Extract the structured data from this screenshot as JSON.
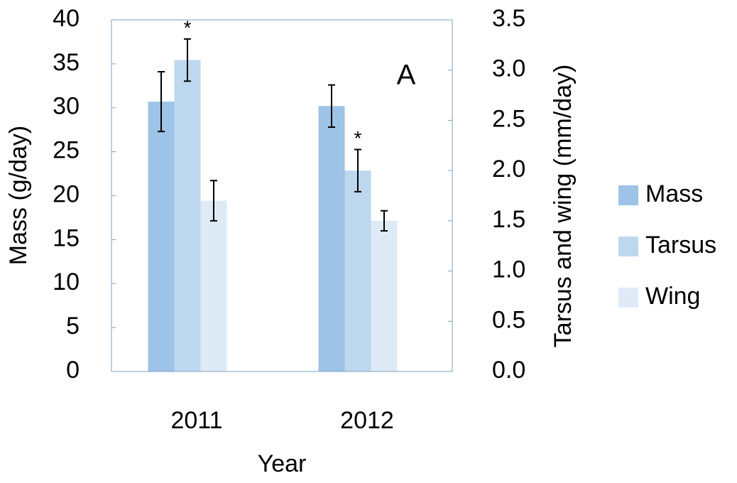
{
  "chart_data": {
    "type": "bar",
    "panel_label": "A",
    "x_label": "Year",
    "y_label": "Mass (g/day)",
    "y2_label": "Tarsus and wing (mm/day)",
    "categories": [
      "2011",
      "2012"
    ],
    "series": [
      {
        "name": "Mass",
        "color": "#9dc3e6",
        "values": [
          30.7,
          30.2
        ],
        "errors": [
          3.4,
          2.4
        ]
      },
      {
        "name": "Tarsus",
        "color": "#bdd7ee",
        "axis": "y2",
        "values": [
          3.1,
          2.0
        ],
        "errors": [
          0.21,
          0.21
        ]
      },
      {
        "name": "Wing",
        "color": "#deebf7",
        "axis": "y2",
        "values": [
          1.7,
          1.5
        ],
        "errors": [
          0.2,
          0.1
        ]
      }
    ],
    "annotations": [
      {
        "text": "*",
        "category": "2011",
        "series": "Tarsus"
      },
      {
        "text": "*",
        "category": "2012",
        "series": "Tarsus"
      }
    ],
    "ylim": [
      0,
      40
    ],
    "yticks": [
      0,
      5,
      10,
      15,
      20,
      25,
      30,
      35,
      40
    ],
    "y2lim": [
      0,
      3.5
    ],
    "y2ticks": [
      {
        "value": 0,
        "label": "0.0"
      },
      0.5,
      {
        "value": 1,
        "label": "1.0"
      },
      1.5,
      {
        "value": 2,
        "label": "2.0"
      },
      2.5,
      {
        "value": 3,
        "label": "3.0"
      },
      3.5
    ],
    "legend": "right"
  }
}
